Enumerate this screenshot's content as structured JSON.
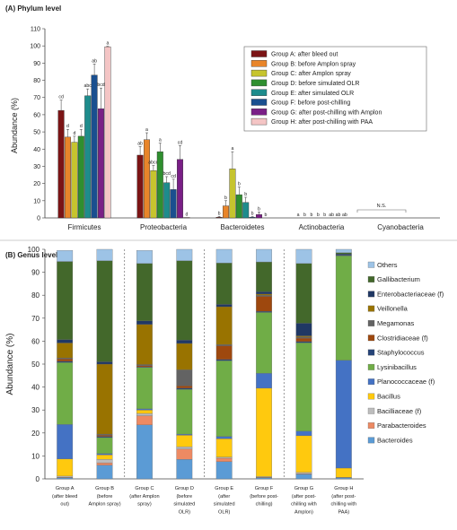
{
  "panels": [
    {
      "panel_title": "(A) Phylum level",
      "ylabel": "Abundance (%)",
      "legend_placement": "top-right",
      "legend": [
        {
          "label": "Group A: after bleed out",
          "color": "#7b1415"
        },
        {
          "label": "Group B: before Amplon spray",
          "color": "#e8852a"
        },
        {
          "label": "Group C: after Amplon spray",
          "color": "#c6c42e"
        },
        {
          "label": "Group D: before simulated OLR",
          "color": "#2f8f2f"
        },
        {
          "label": "Group E: after simulated OLR",
          "color": "#1e8c8c"
        },
        {
          "label": "Group F: before post-chilling",
          "color": "#1a4f8f"
        },
        {
          "label": "Group G: after post-chilling with Amplon",
          "color": "#7a1f86"
        },
        {
          "label": "Group H: after post-chilling with PAA",
          "color": "#f4c5c5"
        }
      ],
      "note": "N.S."
    },
    {
      "panel_title": "(B) Genus level",
      "ylabel": "Abundance (%)",
      "legend_placement": "right",
      "group_labels": [
        [
          "Group A",
          "(after bleed",
          "out)"
        ],
        [
          "Group B",
          "(before",
          "Amplon spray)"
        ],
        [
          "Group C",
          "(after Amplon",
          "spray)"
        ],
        [
          "Group D",
          "(before",
          "simulated",
          "OLR)"
        ],
        [
          "Group E",
          "(after",
          "simulated",
          "OLR)"
        ],
        [
          "Group F",
          "(before post-",
          "chilling)"
        ],
        [
          "Group G",
          "(after post-",
          "chilling with",
          "Amplon)"
        ],
        [
          "Group H",
          "(after post-",
          "chilling with",
          "PAA)"
        ]
      ]
    }
  ],
  "chart_data": [
    {
      "type": "bar",
      "ylabel": "Abundance (%)",
      "ylim": [
        0,
        110
      ],
      "yticks": [
        0,
        10,
        20,
        30,
        40,
        50,
        60,
        70,
        80,
        90,
        100,
        110
      ],
      "grid": false,
      "categories": [
        "Firmicutes",
        "Proteobacteria",
        "Bacteroidetes",
        "Actinobacteria",
        "Cyanobacteria"
      ],
      "series": [
        {
          "name": "Group A: after bleed out",
          "color": "#7b1415",
          "values": [
            62.5,
            36.5,
            0.4,
            0.1,
            0
          ],
          "errors": [
            6,
            5,
            0.5,
            0.1,
            0
          ],
          "letters": [
            "cd",
            "ab",
            "b",
            "a",
            ""
          ]
        },
        {
          "name": "Group B: before Amplon spray",
          "color": "#e8852a",
          "values": [
            47,
            45.5,
            7,
            0.1,
            0
          ],
          "errors": [
            4.5,
            4,
            3,
            0.1,
            0
          ],
          "letters": [
            "d",
            "a",
            "b",
            "b",
            ""
          ]
        },
        {
          "name": "Group C: after Amplon spray",
          "color": "#c6c42e",
          "values": [
            44,
            27.5,
            28.5,
            0.1,
            0
          ],
          "errors": [
            3.5,
            3,
            10,
            0.1,
            0
          ],
          "letters": [
            "d",
            "abcd",
            "a",
            "b",
            ""
          ]
        },
        {
          "name": "Group D: before simulated OLR",
          "color": "#2f8f2f",
          "values": [
            47.5,
            38.5,
            13.5,
            0.1,
            0
          ],
          "errors": [
            4,
            5,
            4.5,
            0.1,
            0
          ],
          "letters": [
            "d",
            "a",
            "b",
            "b",
            ""
          ]
        },
        {
          "name": "Group E: after simulated OLR",
          "color": "#1e8c8c",
          "values": [
            71,
            20.5,
            9,
            0.1,
            0
          ],
          "errors": [
            4,
            3.5,
            3,
            0.1,
            0
          ],
          "letters": [
            "abc",
            "bcd",
            "b",
            "b",
            ""
          ]
        },
        {
          "name": "Group F: before post-chilling",
          "color": "#1a4f8f",
          "values": [
            83,
            16.5,
            0.4,
            0.1,
            0
          ],
          "errors": [
            6.5,
            6,
            0.4,
            0.1,
            0
          ],
          "letters": [
            "ab",
            "cd",
            "b",
            "ab",
            ""
          ]
        },
        {
          "name": "Group G: after post-chilling with Amplon",
          "color": "#7a1f86",
          "values": [
            63.5,
            34,
            2,
            0.1,
            0
          ],
          "errors": [
            12,
            8,
            1.5,
            0.1,
            0
          ],
          "letters": [
            "bcd",
            "cd",
            "b",
            "ab",
            ""
          ]
        },
        {
          "name": "Group H: after post-chilling with PAA",
          "color": "#f4c5c5",
          "values": [
            99.5,
            0.3,
            0.1,
            0,
            0
          ],
          "errors": [
            0.3,
            0.2,
            0,
            0,
            0
          ],
          "letters": [
            "a",
            "d",
            "b",
            "ab",
            ""
          ]
        }
      ]
    },
    {
      "type": "bar",
      "stacked": true,
      "ylabel": "Abundance (%)",
      "ylim": [
        0,
        100
      ],
      "yticks": [
        0,
        10,
        20,
        30,
        40,
        50,
        60,
        70,
        80,
        90,
        100
      ],
      "grid": false,
      "legend_placement": "right",
      "categories": [
        "Group A (after bleed out)",
        "Group B (before Amplon spray)",
        "Group C (after Amplon spray)",
        "Group D (before simulated OLR)",
        "Group E (after simulated OLR)",
        "Group F (before post-chilling)",
        "Group G (after post-chilling with Amplon)",
        "Group H (after post-chilling with PAA)"
      ],
      "series": [
        {
          "name": "Bacteroides",
          "color": "#5b9bd5",
          "values": [
            0.5,
            6,
            23.5,
            8.5,
            7.5,
            0.5,
            2,
            0.5
          ]
        },
        {
          "name": "Parabacteroides",
          "color": "#ed8a63",
          "values": [
            0.2,
            1,
            4,
            4.5,
            1.5,
            0.2,
            0.3,
            0
          ]
        },
        {
          "name": "Bacilliaceae (f)",
          "color": "#bdbdbd",
          "values": [
            0.5,
            1.5,
            1,
            1,
            0.5,
            0.3,
            0.5,
            0.2
          ]
        },
        {
          "name": "Bacillus",
          "color": "#ffc90e",
          "values": [
            7.5,
            2,
            1.5,
            5,
            8,
            38.5,
            16,
            4
          ]
        },
        {
          "name": "Planococcaceae (f)",
          "color": "#4472c4",
          "values": [
            15,
            0.5,
            0.5,
            0.5,
            1,
            6.5,
            2,
            47
          ]
        },
        {
          "name": "Lysinibacillus",
          "color": "#70ad47",
          "values": [
            27,
            7,
            18,
            19.5,
            33,
            26.5,
            38.5,
            45.5
          ]
        },
        {
          "name": "Staphylococcus",
          "color": "#264478",
          "values": [
            0.5,
            0.5,
            0.3,
            0.5,
            0.5,
            0.5,
            0.5,
            0.3
          ]
        },
        {
          "name": "Clostridiaceae (f)",
          "color": "#9e480e",
          "values": [
            1,
            0.5,
            0.5,
            1,
            6,
            6.5,
            1.5,
            0
          ]
        },
        {
          "name": "Megamonas",
          "color": "#636363",
          "values": [
            0.5,
            0.5,
            0.5,
            7,
            0.5,
            0.5,
            0.5,
            0
          ]
        },
        {
          "name": "Veillonella",
          "color": "#997300",
          "values": [
            6.5,
            30.5,
            17.5,
            11.5,
            16.5,
            0.5,
            0.5,
            0
          ]
        },
        {
          "name": "Enterobacteriaceae (f)",
          "color": "#203864",
          "values": [
            1.5,
            1,
            1.5,
            1.5,
            1,
            1,
            5.5,
            0.5
          ]
        },
        {
          "name": "Gallibacterium",
          "color": "#43682b",
          "values": [
            34,
            44,
            25,
            34.5,
            18,
            13,
            26,
            0.5
          ]
        },
        {
          "name": "Others",
          "color": "#9dc3e6",
          "values": [
            4.8,
            5,
            5.7,
            5,
            6,
            5.5,
            6.2,
            1.5
          ]
        }
      ]
    }
  ]
}
